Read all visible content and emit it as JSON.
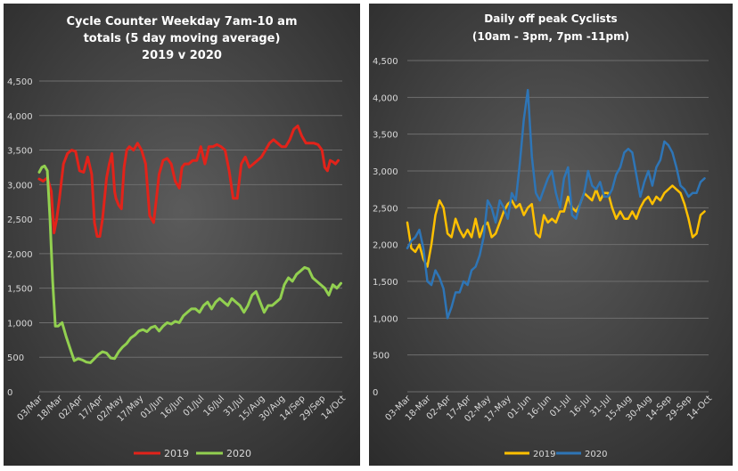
{
  "chart_data": [
    {
      "type": "line",
      "title_lines": [
        "Cycle Counter Weekday 7am-10 am",
        "totals (5 day moving average)",
        "2019 v 2020"
      ],
      "ylim": [
        0,
        4500
      ],
      "yticks": [
        "0",
        "500",
        "1,000",
        "1,500",
        "2,000",
        "2,500",
        "3,000",
        "3,500",
        "4,000",
        "4,500"
      ],
      "ytick_values": [
        0,
        500,
        1000,
        1500,
        2000,
        2500,
        3000,
        3500,
        4000,
        4500
      ],
      "x_range": [
        0,
        225
      ],
      "xticks": [
        "03/Mar",
        "18/Mar",
        "02/Apr",
        "17/Apr",
        "02/May",
        "17/May",
        "01/Jun",
        "16/Jun",
        "01/Jul",
        "16/Jul",
        "31/Jul",
        "15/Aug",
        "30/Aug",
        "14/Sep",
        "29/Sep",
        "14/Oct"
      ],
      "xtick_days": [
        0,
        15,
        30,
        45,
        60,
        75,
        90,
        105,
        120,
        135,
        150,
        165,
        180,
        195,
        210,
        225
      ],
      "legend_position": "bottom",
      "grid": true,
      "series": [
        {
          "name": "2019",
          "color": "#e2231a",
          "x": [
            0,
            3,
            6,
            9,
            11,
            13,
            15,
            18,
            21,
            24,
            27,
            30,
            33,
            36,
            39,
            41,
            43,
            45,
            47,
            50,
            52,
            54,
            56,
            57,
            59,
            61,
            63,
            65,
            67,
            70,
            73,
            76,
            79,
            82,
            85,
            87,
            89,
            92,
            95,
            98,
            101,
            104,
            106,
            108,
            111,
            114,
            117,
            120,
            123,
            126,
            129,
            132,
            135,
            138,
            141,
            144,
            147,
            150,
            153,
            156,
            159,
            162,
            165,
            168,
            171,
            174,
            177,
            180,
            183,
            186,
            189,
            192,
            195,
            198,
            201,
            204,
            207,
            210,
            212,
            214,
            216,
            218,
            220,
            222
          ],
          "values": [
            3080,
            3050,
            3100,
            2900,
            2300,
            2500,
            2800,
            3300,
            3450,
            3500,
            3480,
            3200,
            3180,
            3400,
            3150,
            2450,
            2250,
            2250,
            2500,
            3100,
            3300,
            3450,
            2900,
            2800,
            2700,
            2650,
            3250,
            3500,
            3550,
            3500,
            3600,
            3500,
            3300,
            2550,
            2450,
            2800,
            3150,
            3350,
            3380,
            3300,
            3050,
            2950,
            3250,
            3300,
            3300,
            3350,
            3350,
            3550,
            3300,
            3550,
            3550,
            3580,
            3550,
            3500,
            3200,
            2800,
            2800,
            3300,
            3400,
            3250,
            3300,
            3350,
            3400,
            3500,
            3600,
            3650,
            3600,
            3550,
            3550,
            3650,
            3800,
            3850,
            3700,
            3600,
            3600,
            3600,
            3580,
            3500,
            3250,
            3200,
            3350,
            3330,
            3300,
            3350
          ]
        },
        {
          "name": "2020",
          "color": "#92d050",
          "x": [
            0,
            2,
            4,
            6,
            8,
            10,
            12,
            14,
            17,
            20,
            23,
            26,
            29,
            32,
            35,
            38,
            41,
            44,
            47,
            50,
            53,
            56,
            59,
            62,
            65,
            68,
            71,
            74,
            77,
            80,
            83,
            86,
            89,
            92,
            95,
            98,
            101,
            104,
            107,
            110,
            113,
            116,
            119,
            122,
            125,
            128,
            131,
            134,
            137,
            140,
            143,
            146,
            149,
            152,
            155,
            158,
            161,
            164,
            167,
            170,
            173,
            176,
            179,
            182,
            185,
            188,
            191,
            194,
            197,
            200,
            203,
            206,
            209,
            212,
            215,
            218,
            221,
            224
          ],
          "values": [
            3180,
            3250,
            3270,
            3200,
            2500,
            1600,
            950,
            950,
            1000,
            800,
            620,
            450,
            480,
            460,
            430,
            420,
            480,
            540,
            580,
            560,
            490,
            480,
            580,
            650,
            700,
            780,
            820,
            880,
            900,
            870,
            930,
            950,
            880,
            950,
            1000,
            980,
            1020,
            1000,
            1100,
            1150,
            1200,
            1200,
            1150,
            1250,
            1300,
            1200,
            1300,
            1350,
            1300,
            1250,
            1350,
            1300,
            1250,
            1150,
            1250,
            1400,
            1450,
            1300,
            1150,
            1250,
            1250,
            1300,
            1350,
            1550,
            1650,
            1600,
            1700,
            1750,
            1800,
            1780,
            1650,
            1600,
            1550,
            1500,
            1400,
            1550,
            1500,
            1570
          ]
        }
      ]
    },
    {
      "type": "line",
      "title_lines": [
        "Daily off peak Cyclists",
        "(10am - 3pm, 7pm -11pm)"
      ],
      "ylim": [
        0,
        4500
      ],
      "yticks": [
        "0",
        "500",
        "1,000",
        "1,500",
        "2,000",
        "2,500",
        "3,000",
        "3,500",
        "4,000",
        "4,500"
      ],
      "ytick_values": [
        0,
        500,
        1000,
        1500,
        2000,
        2500,
        3000,
        3500,
        4000,
        4500
      ],
      "x_range": [
        0,
        225
      ],
      "xticks": [
        "03-Mar",
        "18-Mar",
        "02-Apr",
        "17-Apr",
        "02-May",
        "17-May",
        "01-Jun",
        "16-Jun",
        "01-Jul",
        "16-Jul",
        "31-Jul",
        "15-Aug",
        "30-Aug",
        "14-Sep",
        "29-Sep",
        "14-Oct"
      ],
      "xtick_days": [
        0,
        15,
        30,
        45,
        60,
        75,
        90,
        105,
        120,
        135,
        150,
        165,
        180,
        195,
        210,
        225
      ],
      "legend_position": "bottom",
      "grid": true,
      "series": [
        {
          "name": "2019",
          "color": "#ffc000",
          "x": [
            0,
            3,
            6,
            9,
            12,
            15,
            18,
            21,
            24,
            27,
            30,
            33,
            36,
            39,
            42,
            45,
            48,
            51,
            54,
            57,
            60,
            63,
            66,
            69,
            72,
            75,
            78,
            81,
            84,
            87,
            90,
            93,
            96,
            99,
            102,
            105,
            108,
            111,
            114,
            117,
            120,
            123,
            126,
            129,
            132,
            135,
            138,
            141,
            144,
            147,
            150,
            153,
            156,
            159,
            162,
            165,
            168,
            171,
            174,
            177,
            180,
            183,
            186,
            189,
            192,
            195,
            198,
            201,
            204,
            207,
            210,
            213,
            216,
            219,
            222
          ],
          "values": [
            2300,
            1950,
            1900,
            2000,
            1800,
            1700,
            2000,
            2400,
            2600,
            2500,
            2150,
            2100,
            2350,
            2200,
            2100,
            2200,
            2100,
            2350,
            2100,
            2250,
            2300,
            2100,
            2150,
            2300,
            2450,
            2550,
            2600,
            2500,
            2550,
            2400,
            2500,
            2550,
            2150,
            2100,
            2400,
            2300,
            2350,
            2300,
            2450,
            2450,
            2650,
            2500,
            2450,
            2550,
            2700,
            2650,
            2600,
            2750,
            2600,
            2700,
            2700,
            2500,
            2350,
            2450,
            2350,
            2350,
            2450,
            2350,
            2500,
            2600,
            2650,
            2550,
            2650,
            2600,
            2700,
            2750,
            2800,
            2750,
            2700,
            2550,
            2350,
            2100,
            2150,
            2400,
            2450
          ]
        },
        {
          "name": "2020",
          "color": "#2e75b6",
          "x": [
            0,
            3,
            6,
            9,
            12,
            15,
            18,
            21,
            24,
            27,
            30,
            33,
            36,
            39,
            42,
            45,
            48,
            51,
            54,
            57,
            60,
            63,
            66,
            69,
            72,
            75,
            78,
            81,
            84,
            87,
            90,
            93,
            96,
            99,
            102,
            105,
            108,
            111,
            114,
            117,
            120,
            123,
            126,
            129,
            132,
            135,
            138,
            141,
            144,
            147,
            150,
            153,
            156,
            159,
            162,
            165,
            168,
            171,
            174,
            177,
            180,
            183,
            186,
            189,
            192,
            195,
            198,
            201,
            204,
            207,
            210,
            213,
            216,
            219,
            222
          ],
          "values": [
            1950,
            2050,
            2100,
            2200,
            1950,
            1500,
            1450,
            1650,
            1550,
            1400,
            1000,
            1150,
            1350,
            1350,
            1500,
            1450,
            1650,
            1700,
            1850,
            2100,
            2600,
            2500,
            2300,
            2600,
            2500,
            2350,
            2700,
            2600,
            3100,
            3700,
            4100,
            3200,
            2700,
            2600,
            2750,
            2900,
            3000,
            2700,
            2500,
            2900,
            3050,
            2400,
            2350,
            2550,
            2700,
            3000,
            2800,
            2750,
            2850,
            2650,
            2650,
            2750,
            2950,
            3050,
            3250,
            3300,
            3250,
            2950,
            2650,
            2850,
            3000,
            2800,
            3050,
            3150,
            3400,
            3350,
            3250,
            3050,
            2800,
            2750,
            2650,
            2700,
            2700,
            2850,
            2900
          ]
        }
      ]
    }
  ]
}
